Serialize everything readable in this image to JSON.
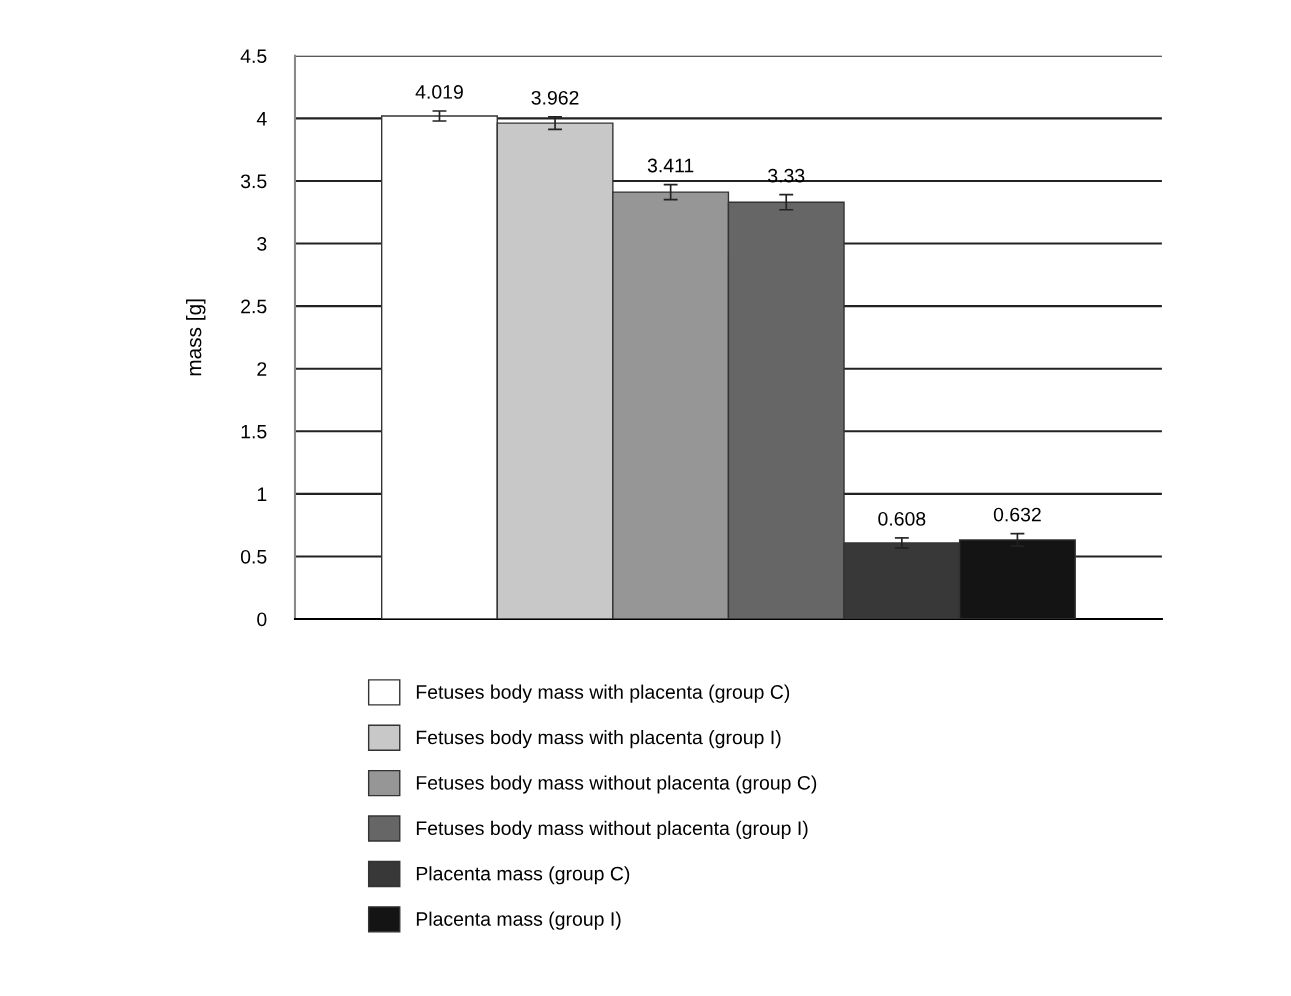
{
  "chart_data": {
    "type": "bar",
    "ylabel": "mass [g]",
    "categories": [
      null
    ],
    "series": [
      {
        "name": "Fetuses body mass with placenta (group C)",
        "color": "#ffffff",
        "values": [
          4.019
        ],
        "errors": [
          0.04
        ]
      },
      {
        "name": "Fetuses body mass with placenta (group I)",
        "color": "#c8c8c8",
        "values": [
          3.962
        ],
        "errors": [
          0.05
        ]
      },
      {
        "name": "Fetuses body mass without placenta (group C)",
        "color": "#969696",
        "values": [
          3.411
        ],
        "errors": [
          0.06
        ]
      },
      {
        "name": "Fetuses body mass without placenta (group I)",
        "color": "#666666",
        "values": [
          3.33
        ],
        "errors": [
          0.06
        ]
      },
      {
        "name": "Placenta mass (group C)",
        "color": "#383838",
        "values": [
          0.608
        ],
        "errors": [
          0.04
        ]
      },
      {
        "name": "Placenta mass (group I)",
        "color": "#141414",
        "values": [
          0.632
        ],
        "errors": [
          0.05
        ]
      }
    ],
    "ylim": [
      0,
      4.5
    ],
    "yticks": [
      0,
      0.5,
      1,
      1.5,
      2,
      2.5,
      3,
      3.5,
      4,
      4.5
    ],
    "grid": "y",
    "legend": "bottom",
    "data_labels": true
  }
}
